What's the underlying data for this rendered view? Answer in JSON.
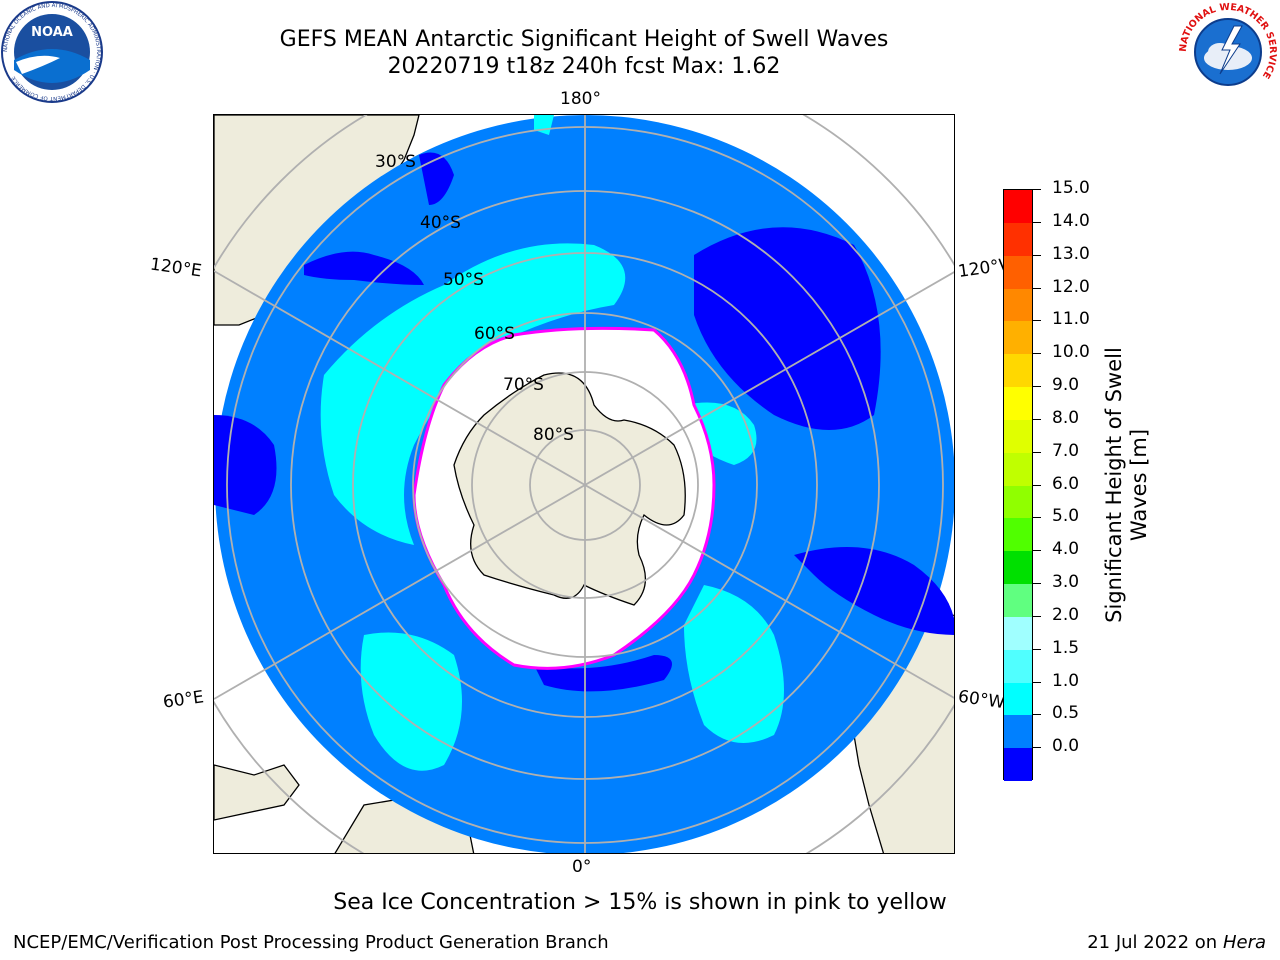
{
  "header": {
    "title_line1": "GEFS MEAN Antarctic Significant Height of Swell Waves",
    "title_line2": "20220719 t18z 240h fcst   Max: 1.62"
  },
  "logos": {
    "noaa_text": "NOAA",
    "noaa_ring": "NATIONAL OCEANIC AND ATMOSPHERIC ADMINISTRATION · U.S. DEPARTMENT OF COMMERCE",
    "nws_ring": "NATIONAL WEATHER SERVICE"
  },
  "map": {
    "projection": "south polar stereographic",
    "longitude_labels": {
      "top": "180°",
      "bottom": "0°",
      "upper_left": "120°E",
      "upper_right": "120°W",
      "lower_left": "60°E",
      "lower_right": "60°W"
    },
    "latitude_labels": [
      "30°S",
      "40°S",
      "50°S",
      "60°S",
      "70°S",
      "80°S"
    ],
    "colors": {
      "ocean_deep": "#0080ff",
      "low_swell": "#0000ff",
      "mid_swell": "#00ffff",
      "land": "#eeecdc",
      "sea_ice": "#ffffff",
      "ice_edge": "#ff00ff",
      "grid": "#b0b0b0"
    }
  },
  "colorbar": {
    "title_line1": "Significant Height of Swell",
    "title_line2": "Waves [m]",
    "tick_labels": [
      "15.0",
      "14.0",
      "13.0",
      "12.0",
      "11.0",
      "10.0",
      "9.0",
      "8.0",
      "7.0",
      "6.0",
      "5.0",
      "4.0",
      "3.0",
      "2.0",
      "1.5",
      "1.0",
      "0.5",
      "0.0"
    ],
    "segment_colors": [
      "#ff0000",
      "#ff3000",
      "#ff6000",
      "#ff8800",
      "#ffb000",
      "#ffd800",
      "#ffff00",
      "#e0ff00",
      "#c0ff00",
      "#90ff00",
      "#50ff00",
      "#00e000",
      "#60ff80",
      "#a0ffff",
      "#50ffff",
      "#00ffff",
      "#0080ff",
      "#0000ff"
    ]
  },
  "footer": {
    "note": "Sea Ice Concentration > 15% is shown in pink to yellow",
    "credit": "NCEP/EMC/Verification Post Processing Product Generation Branch",
    "date": "21 Jul 2022 on",
    "machine": "Hera"
  }
}
